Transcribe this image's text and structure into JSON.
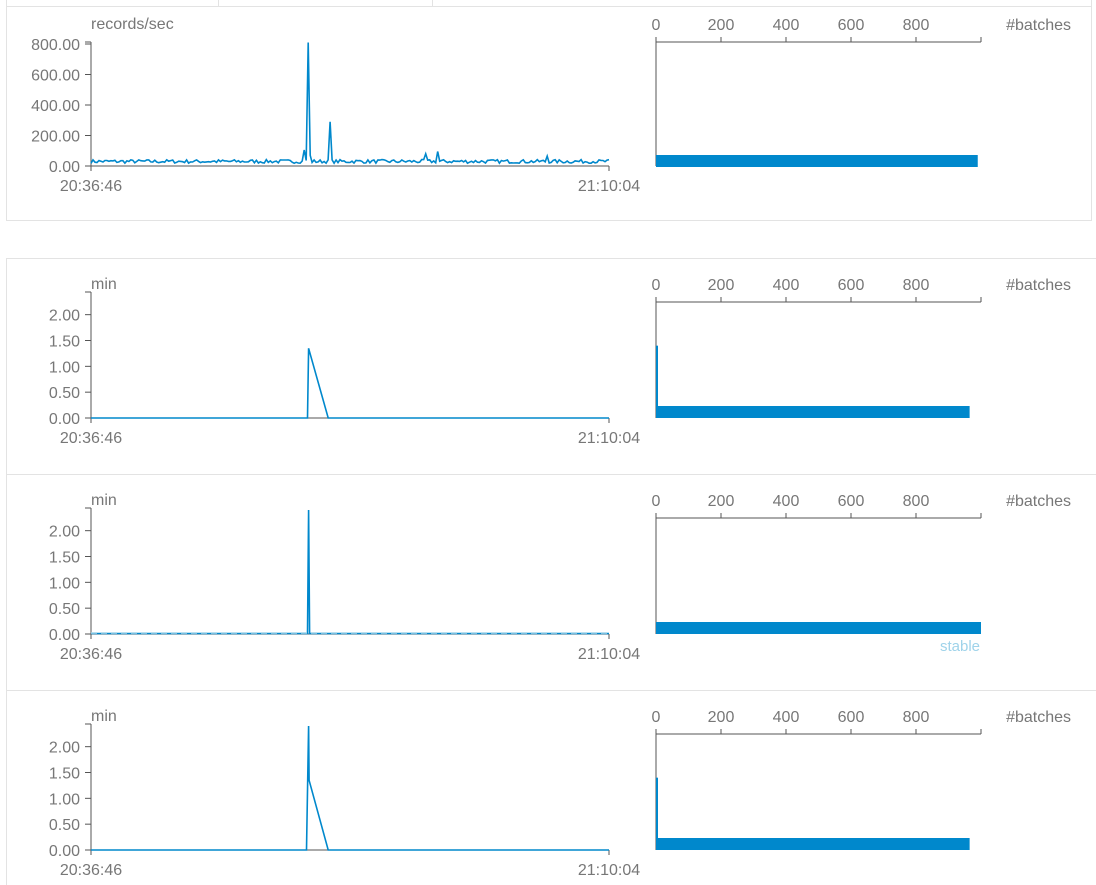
{
  "time_axis": {
    "start_label": "20:36:46",
    "end_label": "21:10:04"
  },
  "hist_axis": {
    "label": "#batches",
    "ticks": [
      0,
      200,
      400,
      600,
      800
    ]
  },
  "colors": {
    "series": "#0088cc",
    "stable": "#9fd3ea",
    "axis": "#555555",
    "text": "#777777",
    "rule": "#e3e3e3"
  },
  "chart_data": [
    {
      "id": "input-rate",
      "type": "line",
      "ylabel": "records/sec",
      "yticks": [
        "800.00",
        "600.00",
        "400.00",
        "200.00",
        "0.00"
      ],
      "ylim": [
        0,
        800
      ],
      "xlabels": [
        "20:36:46",
        "21:10:04"
      ],
      "noise": {
        "base": 30,
        "amp": 12
      },
      "spikes": [
        {
          "t": 0.42,
          "v": 810
        },
        {
          "t": 0.424,
          "v": 70
        },
        {
          "t": 0.462,
          "v": 290
        },
        {
          "t": 0.41,
          "v": 105
        },
        {
          "t": 0.67,
          "v": 95
        },
        {
          "t": 0.645,
          "v": 80
        },
        {
          "t": 0.88,
          "v": 65
        }
      ],
      "histogram": {
        "xlabel": "#batches",
        "xlim": [
          0,
          1000
        ],
        "bins": [
          {
            "y": 30,
            "count": 990
          }
        ]
      }
    },
    {
      "id": "scheduling-delay",
      "type": "line",
      "ylabel": "min",
      "yticks": [
        "2.00",
        "1.50",
        "1.00",
        "0.50",
        "0.00"
      ],
      "ylim": [
        0,
        2.4
      ],
      "xlabels": [
        "20:36:46",
        "21:10:04"
      ],
      "points": [
        {
          "t": 0,
          "v": 0
        },
        {
          "t": 0.418,
          "v": 0
        },
        {
          "t": 0.42,
          "v": 1.35
        },
        {
          "t": 0.458,
          "v": 0
        },
        {
          "t": 1,
          "v": 0
        }
      ],
      "histogram": {
        "xlabel": "#batches",
        "xlim": [
          0,
          1000
        ],
        "bins": [
          {
            "y": 0.1,
            "count": 965
          },
          {
            "y": 1.4,
            "count": 3
          },
          {
            "y": 0.95,
            "count": 3
          }
        ]
      }
    },
    {
      "id": "processing-time",
      "type": "line",
      "ylabel": "min",
      "yticks": [
        "2.00",
        "1.50",
        "1.00",
        "0.50",
        "0.00"
      ],
      "ylim": [
        0,
        2.4
      ],
      "xlabels": [
        "20:36:46",
        "21:10:04"
      ],
      "stable_line": 0.02,
      "stable_label": "stable",
      "points": [
        {
          "t": 0,
          "v": 0.01
        },
        {
          "t": 0.418,
          "v": 0.01
        },
        {
          "t": 0.42,
          "v": 2.4
        },
        {
          "t": 0.422,
          "v": 0.01
        },
        {
          "t": 1,
          "v": 0.01
        }
      ],
      "histogram": {
        "xlabel": "#batches",
        "xlim": [
          0,
          1000
        ],
        "bins": [
          {
            "y": 0.1,
            "count": 1000
          }
        ]
      }
    },
    {
      "id": "total-delay",
      "type": "line",
      "ylabel": "min",
      "yticks": [
        "2.00",
        "1.50",
        "1.00",
        "0.50",
        "0.00"
      ],
      "ylim": [
        0,
        2.4
      ],
      "xlabels": [
        "20:36:46",
        "21:10:04"
      ],
      "points": [
        {
          "t": 0,
          "v": 0
        },
        {
          "t": 0.416,
          "v": 0
        },
        {
          "t": 0.42,
          "v": 2.4
        },
        {
          "t": 0.421,
          "v": 1.35
        },
        {
          "t": 0.458,
          "v": 0
        },
        {
          "t": 1,
          "v": 0
        }
      ],
      "histogram": {
        "xlabel": "#batches",
        "xlim": [
          0,
          1000
        ],
        "bins": [
          {
            "y": 0.1,
            "count": 965
          },
          {
            "y": 1.4,
            "count": 3
          },
          {
            "y": 0.95,
            "count": 3
          }
        ]
      }
    }
  ]
}
